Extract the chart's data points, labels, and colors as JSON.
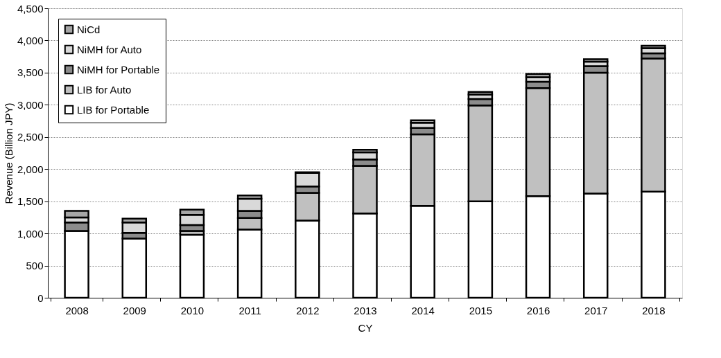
{
  "chart_data": {
    "type": "bar",
    "stacked": true,
    "xlabel": "CY",
    "ylabel": "Revenue (Billion JPY)",
    "categories": [
      "2008",
      "2009",
      "2010",
      "2011",
      "2012",
      "2013",
      "2014",
      "2015",
      "2016",
      "2017",
      "2018"
    ],
    "series": [
      {
        "name": "LIB for Portable",
        "color": "#ffffff",
        "values": [
          1040,
          920,
          980,
          1060,
          1200,
          1310,
          1430,
          1500,
          1580,
          1620,
          1650
        ]
      },
      {
        "name": "LIB for Auto",
        "color": "#c0c0c0",
        "values": [
          null,
          null,
          60,
          180,
          430,
          740,
          1110,
          1490,
          1680,
          1880,
          2070
        ]
      },
      {
        "name": "NiMH for Portable",
        "color": "#8c8c8c",
        "values": [
          130,
          90,
          90,
          110,
          100,
          100,
          100,
          100,
          100,
          100,
          80
        ]
      },
      {
        "name": "NiMH for Auto",
        "color": "#d9d9d9",
        "values": [
          80,
          160,
          160,
          190,
          210,
          110,
          80,
          70,
          70,
          70,
          80
        ]
      },
      {
        "name": "NiCd",
        "color": "#a6a6a6",
        "values": [
          100,
          60,
          80,
          50,
          10,
          40,
          40,
          40,
          50,
          40,
          40
        ]
      }
    ],
    "ylim": [
      0,
      4500
    ],
    "yticks": [
      0,
      500,
      {
        "value": 1000,
        "label": "1,000"
      },
      {
        "value": 1500,
        "label": "1,500"
      },
      {
        "value": 2000,
        "label": "2,000"
      },
      {
        "value": 2500,
        "label": "2,500"
      },
      {
        "value": 3000,
        "label": "3,000"
      },
      {
        "value": 3500,
        "label": "3,500"
      },
      {
        "value": 4000,
        "label": "4,000"
      },
      {
        "value": 4500,
        "label": "4,500"
      }
    ],
    "grid": "y",
    "legend": "top left"
  }
}
